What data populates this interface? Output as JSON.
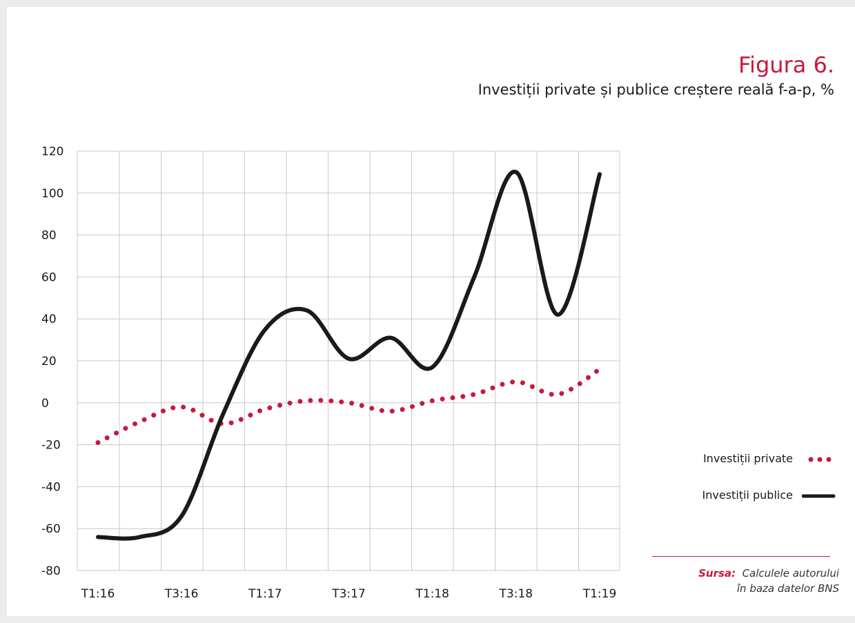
{
  "figure": {
    "label": "Figura 6.",
    "title": "Investiții private și publice creștere reală f-a-p, %"
  },
  "legend": {
    "private_label": "Investiții private",
    "public_label": "Investiții publice"
  },
  "source": {
    "key": "Sursa:",
    "line1": "Calculele autorului",
    "line2": "în baza datelor BNS"
  },
  "colors": {
    "private": "#c8183f",
    "public": "#1a1a1a",
    "grid": "#c8c8c8",
    "accent": "#c8183f"
  },
  "chart_data": {
    "type": "line",
    "x": [
      "T1:16",
      "T2:16",
      "T3:16",
      "T4:16",
      "T1:17",
      "T2:17",
      "T3:17",
      "T4:17",
      "T1:18",
      "T2:18",
      "T3:18",
      "T4:18",
      "T1:19"
    ],
    "tick_labels": [
      "T1:16",
      "T3:16",
      "T1:17",
      "T3:17",
      "T1:18",
      "T3:18",
      "T1:19"
    ],
    "ylim": [
      -80,
      120
    ],
    "yticks": [
      120,
      100,
      80,
      60,
      40,
      20,
      0,
      -20,
      -40,
      -60,
      -80
    ],
    "grid": true,
    "legend_position": "right",
    "series": [
      {
        "name": "Investiții private",
        "style": "dotted",
        "points": [
          [
            "T1:16",
            -19
          ],
          [
            "T2:16",
            -9
          ],
          [
            "T3:16",
            -2
          ],
          [
            "T4:16",
            -10
          ],
          [
            "T1:17",
            -3
          ],
          [
            "T2:17",
            1
          ],
          [
            "T3:17",
            0
          ],
          [
            "T4:17",
            -4
          ],
          [
            "T1:18",
            1
          ],
          [
            "T2:18",
            4
          ],
          [
            "T3:18",
            10
          ],
          [
            "T4:18",
            4
          ],
          [
            "T1:19",
            16
          ]
        ]
      },
      {
        "name": "Investiții publice",
        "style": "solid",
        "points": [
          [
            "T1:16",
            -64
          ],
          [
            "T2:16",
            -64
          ],
          [
            "T3:16",
            -54
          ],
          [
            "T4:16",
            -5
          ],
          [
            "T1:17",
            35
          ],
          [
            "T2:17",
            44
          ],
          [
            "T3:17",
            21
          ],
          [
            "T4:17",
            31
          ],
          [
            "T1:18",
            17
          ],
          [
            "T2:18",
            60
          ],
          [
            "T3:18",
            110
          ],
          [
            "T4:18",
            42
          ],
          [
            "T1:19",
            109
          ]
        ]
      }
    ]
  }
}
